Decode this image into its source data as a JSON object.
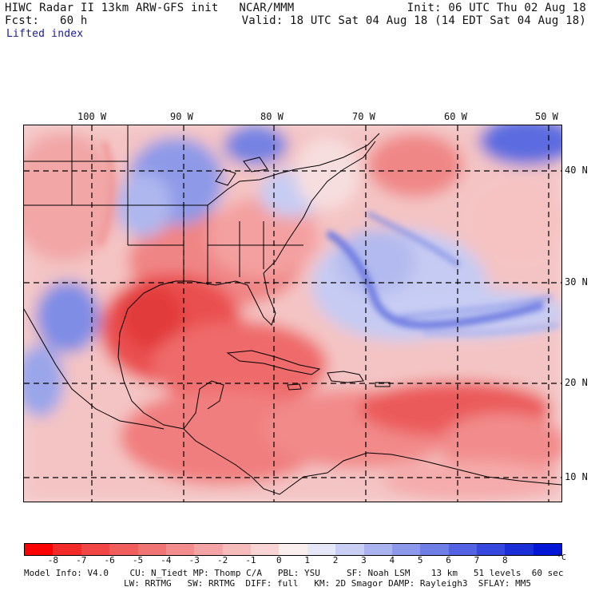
{
  "header": {
    "title_line1": "HIWC Radar II 13km ARW-GFS init   NCAR/MMM",
    "title_line2": "Fcst:   60 h",
    "field_name": "Lifted index",
    "init": "Init: 06 UTC Thu 02 Aug 18",
    "valid": "Valid: 18 UTC Sat 04 Aug 18 (14 EDT Sat 04 Aug 18)"
  },
  "map": {
    "lon_labels": [
      "100 W",
      "90 W",
      "80 W",
      "70 W",
      "60 W",
      "50 W"
    ],
    "lat_labels": [
      "40 N",
      "30 N",
      "20 N",
      "10 N"
    ],
    "colors": {
      "strong_red": "#e83a3a",
      "red": "#f06a6a",
      "light_red": "#f5a3a3",
      "pale_red": "#f8cccc",
      "neutral": "#f6eeee",
      "pale_blue": "#d8dcf6",
      "light_blue": "#aab4ee",
      "blue": "#6f7fe4",
      "deep_blue": "#3a48d8"
    }
  },
  "colorbar": {
    "labels": [
      "-8",
      "-7",
      "-6",
      "-5",
      "-4",
      "-3",
      "-2",
      "-1",
      "0",
      "1",
      "2",
      "3",
      "4",
      "5",
      "6",
      "7",
      "8"
    ],
    "unit": "°C",
    "colors": [
      "#ff0000",
      "#f32a2a",
      "#f24545",
      "#f15c5c",
      "#f17474",
      "#f38c8c",
      "#f4a4a4",
      "#f6bcbc",
      "#f8d4d4",
      "#fbeeee",
      "#e6e8fa",
      "#c9cef5",
      "#aab3f0",
      "#8c98eb",
      "#6f7de6",
      "#5262e1",
      "#3547dc",
      "#1a2ed8",
      "#0016d6"
    ]
  },
  "footer": {
    "line1": "Model Info: V4.0    CU: N_Tiedt MP: Thomp C/A   PBL: YSU     SF: Noah LSM    13 km   51 levels  60 sec",
    "line2": "LW: RRTMG   SW: RRTMG  DIFF: full   KM: 2D Smagor DAMP: Rayleigh3  SFLAY: MM5"
  }
}
